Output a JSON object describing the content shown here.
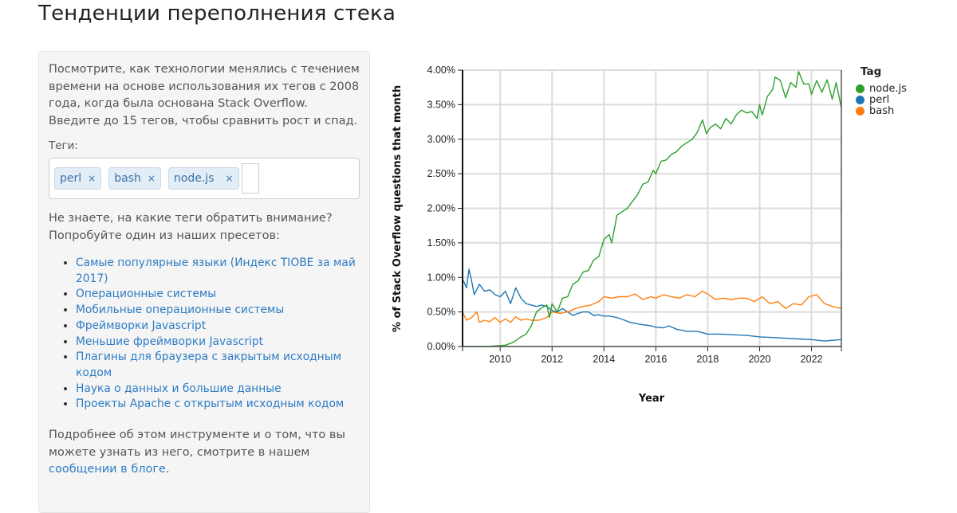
{
  "page": {
    "title": "Тенденции переполнения стека"
  },
  "sidebar": {
    "intro": "Посмотрите, как технологии менялись с течением времени на основе использования их тегов с 2008 года, когда была основана Stack Overflow. Введите до 15 тегов, чтобы сравнить рост и спад.",
    "tags_label": "Теги:",
    "tags": [
      {
        "label": "perl",
        "remove": "×"
      },
      {
        "label": "bash",
        "remove": "×"
      },
      {
        "label": "node.js",
        "remove": "×"
      }
    ],
    "tag_input_value": "",
    "hint": "Не знаете, на какие теги обратить внимание? Попробуйте один из наших пресетов:",
    "presets": [
      {
        "label": "Самые популярные языки",
        "paren_open": " (",
        "sub_link": "Индекс TIOBE за май 2017",
        "paren_close": ")"
      },
      {
        "label": "Операционные системы"
      },
      {
        "label": "Мобильные операционные системы"
      },
      {
        "label": "Фреймворки Javascript"
      },
      {
        "label": "Меньшие фреймворки Javascript"
      },
      {
        "label": "Плагины для браузера с закрытым исходным кодом"
      },
      {
        "label": "Наука о данных и большие данные"
      },
      {
        "label": "Проекты Apache с открытым исходным кодом"
      }
    ],
    "footer_text": "Подробнее об этом инструменте и о том, что вы можете узнать из него, смотрите в нашем ",
    "footer_link": "сообщении в блоге",
    "footer_end": "."
  },
  "chart_data": {
    "type": "line",
    "title": "",
    "xlabel": "Year",
    "ylabel": "% of Stack Overflow questions that month",
    "xlim": [
      2008.55,
      2023.15
    ],
    "ylim": [
      0,
      4
    ],
    "x_ticks": [
      "2010",
      "2012",
      "2014",
      "2016",
      "2018",
      "2020",
      "2022"
    ],
    "x_tick_values": [
      2010,
      2012,
      2014,
      2016,
      2018,
      2020,
      2022
    ],
    "y_ticks": [
      "0.00%",
      "0.50%",
      "1.00%",
      "1.50%",
      "2.00%",
      "2.50%",
      "3.00%",
      "3.50%",
      "4.00%"
    ],
    "y_tick_values": [
      0,
      0.5,
      1,
      1.5,
      2,
      2.5,
      3,
      3.5,
      4
    ],
    "grid": true,
    "legend": {
      "title": "Tag",
      "position": "right"
    },
    "series": [
      {
        "name": "node.js",
        "color": "#2ca02c",
        "points": [
          [
            2008.55,
            0.0
          ],
          [
            2009.0,
            0.0
          ],
          [
            2009.5,
            0.0
          ],
          [
            2009.9,
            0.01
          ],
          [
            2010.2,
            0.02
          ],
          [
            2010.5,
            0.06
          ],
          [
            2010.8,
            0.14
          ],
          [
            2011.0,
            0.18
          ],
          [
            2011.2,
            0.3
          ],
          [
            2011.4,
            0.5
          ],
          [
            2011.6,
            0.56
          ],
          [
            2011.8,
            0.6
          ],
          [
            2011.9,
            0.42
          ],
          [
            2012.0,
            0.62
          ],
          [
            2012.2,
            0.5
          ],
          [
            2012.4,
            0.7
          ],
          [
            2012.6,
            0.72
          ],
          [
            2012.8,
            0.9
          ],
          [
            2013.0,
            0.95
          ],
          [
            2013.2,
            1.08
          ],
          [
            2013.4,
            1.1
          ],
          [
            2013.6,
            1.25
          ],
          [
            2013.8,
            1.3
          ],
          [
            2014.0,
            1.55
          ],
          [
            2014.2,
            1.62
          ],
          [
            2014.3,
            1.5
          ],
          [
            2014.5,
            1.9
          ],
          [
            2014.7,
            1.95
          ],
          [
            2014.9,
            2.0
          ],
          [
            2015.1,
            2.1
          ],
          [
            2015.3,
            2.2
          ],
          [
            2015.5,
            2.35
          ],
          [
            2015.7,
            2.38
          ],
          [
            2015.9,
            2.55
          ],
          [
            2016.0,
            2.5
          ],
          [
            2016.2,
            2.68
          ],
          [
            2016.4,
            2.7
          ],
          [
            2016.6,
            2.78
          ],
          [
            2016.8,
            2.82
          ],
          [
            2017.0,
            2.9
          ],
          [
            2017.2,
            2.95
          ],
          [
            2017.4,
            3.0
          ],
          [
            2017.6,
            3.1
          ],
          [
            2017.8,
            3.28
          ],
          [
            2017.95,
            3.08
          ],
          [
            2018.1,
            3.17
          ],
          [
            2018.3,
            3.22
          ],
          [
            2018.5,
            3.15
          ],
          [
            2018.7,
            3.3
          ],
          [
            2018.9,
            3.22
          ],
          [
            2019.1,
            3.35
          ],
          [
            2019.3,
            3.42
          ],
          [
            2019.5,
            3.38
          ],
          [
            2019.7,
            3.4
          ],
          [
            2019.9,
            3.3
          ],
          [
            2020.0,
            3.5
          ],
          [
            2020.1,
            3.35
          ],
          [
            2020.3,
            3.62
          ],
          [
            2020.5,
            3.72
          ],
          [
            2020.6,
            3.9
          ],
          [
            2020.8,
            3.85
          ],
          [
            2021.0,
            3.6
          ],
          [
            2021.2,
            3.82
          ],
          [
            2021.4,
            3.75
          ],
          [
            2021.5,
            3.98
          ],
          [
            2021.7,
            3.8
          ],
          [
            2021.9,
            3.8
          ],
          [
            2022.0,
            3.65
          ],
          [
            2022.2,
            3.85
          ],
          [
            2022.4,
            3.68
          ],
          [
            2022.6,
            3.86
          ],
          [
            2022.8,
            3.58
          ],
          [
            2022.95,
            3.82
          ],
          [
            2023.15,
            3.45
          ]
        ]
      },
      {
        "name": "perl",
        "color": "#1f77b4",
        "points": [
          [
            2008.55,
            0.98
          ],
          [
            2008.7,
            0.85
          ],
          [
            2008.8,
            1.12
          ],
          [
            2008.9,
            0.95
          ],
          [
            2009.0,
            0.75
          ],
          [
            2009.2,
            0.9
          ],
          [
            2009.4,
            0.8
          ],
          [
            2009.6,
            0.82
          ],
          [
            2009.8,
            0.75
          ],
          [
            2010.0,
            0.72
          ],
          [
            2010.2,
            0.8
          ],
          [
            2010.4,
            0.62
          ],
          [
            2010.6,
            0.85
          ],
          [
            2010.8,
            0.7
          ],
          [
            2011.0,
            0.62
          ],
          [
            2011.2,
            0.6
          ],
          [
            2011.4,
            0.58
          ],
          [
            2011.6,
            0.6
          ],
          [
            2011.8,
            0.58
          ],
          [
            2012.0,
            0.52
          ],
          [
            2012.2,
            0.5
          ],
          [
            2012.4,
            0.55
          ],
          [
            2012.6,
            0.5
          ],
          [
            2012.8,
            0.45
          ],
          [
            2013.0,
            0.48
          ],
          [
            2013.2,
            0.5
          ],
          [
            2013.4,
            0.5
          ],
          [
            2013.6,
            0.45
          ],
          [
            2013.8,
            0.46
          ],
          [
            2014.0,
            0.44
          ],
          [
            2014.2,
            0.44
          ],
          [
            2014.5,
            0.42
          ],
          [
            2014.8,
            0.38
          ],
          [
            2015.0,
            0.35
          ],
          [
            2015.4,
            0.32
          ],
          [
            2015.8,
            0.3
          ],
          [
            2016.0,
            0.28
          ],
          [
            2016.3,
            0.27
          ],
          [
            2016.5,
            0.3
          ],
          [
            2016.8,
            0.25
          ],
          [
            2017.2,
            0.22
          ],
          [
            2017.6,
            0.22
          ],
          [
            2018.0,
            0.18
          ],
          [
            2018.5,
            0.18
          ],
          [
            2019.0,
            0.17
          ],
          [
            2019.5,
            0.16
          ],
          [
            2020.0,
            0.14
          ],
          [
            2020.5,
            0.13
          ],
          [
            2021.0,
            0.12
          ],
          [
            2021.5,
            0.11
          ],
          [
            2022.0,
            0.1
          ],
          [
            2022.5,
            0.08
          ],
          [
            2023.15,
            0.1
          ]
        ]
      },
      {
        "name": "bash",
        "color": "#ff7f0e",
        "points": [
          [
            2008.55,
            0.5
          ],
          [
            2008.7,
            0.38
          ],
          [
            2008.9,
            0.42
          ],
          [
            2009.1,
            0.5
          ],
          [
            2009.2,
            0.35
          ],
          [
            2009.4,
            0.38
          ],
          [
            2009.6,
            0.36
          ],
          [
            2009.8,
            0.42
          ],
          [
            2010.0,
            0.35
          ],
          [
            2010.2,
            0.4
          ],
          [
            2010.4,
            0.35
          ],
          [
            2010.6,
            0.43
          ],
          [
            2010.8,
            0.38
          ],
          [
            2011.0,
            0.4
          ],
          [
            2011.2,
            0.38
          ],
          [
            2011.5,
            0.38
          ],
          [
            2011.8,
            0.42
          ],
          [
            2012.0,
            0.5
          ],
          [
            2012.3,
            0.48
          ],
          [
            2012.6,
            0.5
          ],
          [
            2012.9,
            0.55
          ],
          [
            2013.2,
            0.58
          ],
          [
            2013.5,
            0.6
          ],
          [
            2013.8,
            0.65
          ],
          [
            2014.0,
            0.72
          ],
          [
            2014.3,
            0.7
          ],
          [
            2014.6,
            0.72
          ],
          [
            2014.9,
            0.72
          ],
          [
            2015.2,
            0.76
          ],
          [
            2015.5,
            0.68
          ],
          [
            2015.8,
            0.72
          ],
          [
            2016.0,
            0.7
          ],
          [
            2016.3,
            0.75
          ],
          [
            2016.6,
            0.72
          ],
          [
            2016.9,
            0.7
          ],
          [
            2017.2,
            0.75
          ],
          [
            2017.5,
            0.72
          ],
          [
            2017.8,
            0.8
          ],
          [
            2018.0,
            0.76
          ],
          [
            2018.3,
            0.68
          ],
          [
            2018.6,
            0.7
          ],
          [
            2018.9,
            0.68
          ],
          [
            2019.2,
            0.7
          ],
          [
            2019.5,
            0.7
          ],
          [
            2019.8,
            0.65
          ],
          [
            2020.1,
            0.72
          ],
          [
            2020.4,
            0.62
          ],
          [
            2020.7,
            0.65
          ],
          [
            2021.0,
            0.55
          ],
          [
            2021.3,
            0.62
          ],
          [
            2021.6,
            0.6
          ],
          [
            2021.9,
            0.72
          ],
          [
            2022.2,
            0.75
          ],
          [
            2022.5,
            0.62
          ],
          [
            2022.8,
            0.58
          ],
          [
            2023.15,
            0.55
          ]
        ]
      }
    ]
  }
}
